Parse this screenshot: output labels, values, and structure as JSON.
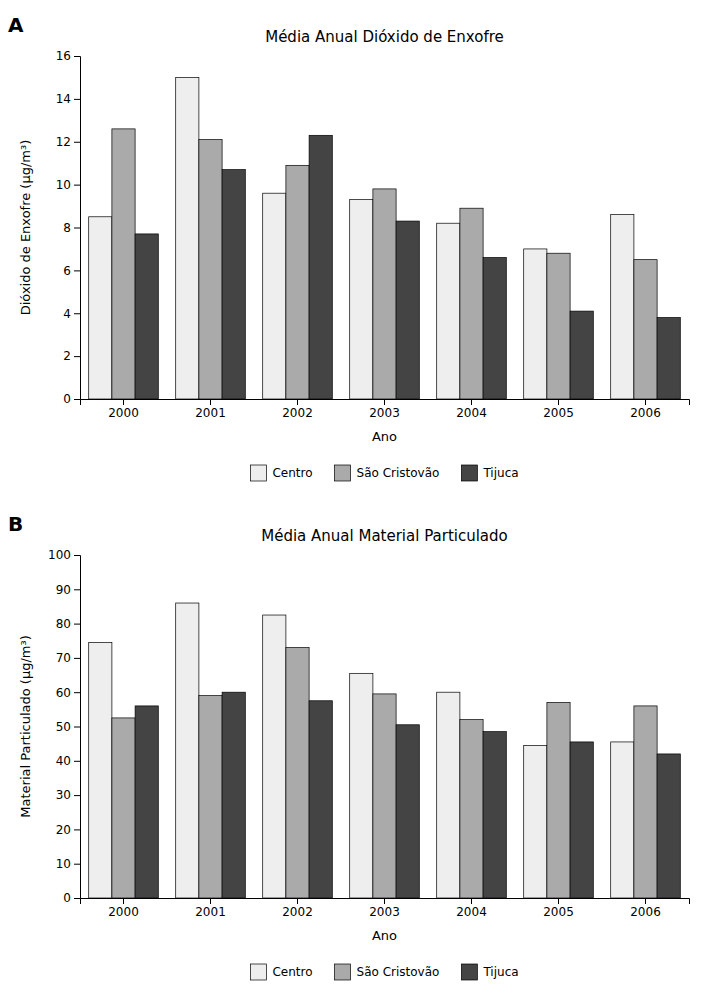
{
  "chart_data": [
    {
      "type": "bar",
      "title": "Média Anual Dióxido de Enxofre",
      "xlabel": "Ano",
      "ylabel": "Dióxido de Enxofre (μg/m³)",
      "annotations": [
        "A"
      ],
      "categories": [
        2000,
        2001,
        2002,
        2003,
        2004,
        2005,
        2006
      ],
      "series": [
        {
          "name": "Centro",
          "color": "#eeeeee",
          "values": [
            8.5,
            15.0,
            9.6,
            9.3,
            8.2,
            7.0,
            8.6
          ]
        },
        {
          "name": "São Cristovão",
          "color": "#aaaaaa",
          "values": [
            12.6,
            12.1,
            10.9,
            9.8,
            8.9,
            6.8,
            6.5
          ]
        },
        {
          "name": "Tijuca",
          "color": "#444444",
          "values": [
            7.7,
            10.7,
            12.3,
            8.3,
            6.6,
            4.1,
            3.8
          ]
        }
      ],
      "ylim": [
        0,
        16
      ],
      "yticks": [
        0,
        2,
        4,
        6,
        8,
        10,
        12,
        14,
        16
      ],
      "grid": false,
      "legend": "bottom"
    },
    {
      "type": "bar",
      "title": "Média Anual Material Particulado",
      "xlabel": "Ano",
      "ylabel": "Material Particulado (μg/m³)",
      "annotations": [
        "B"
      ],
      "categories": [
        2000,
        2001,
        2002,
        2003,
        2004,
        2005,
        2006
      ],
      "series": [
        {
          "name": "Centro",
          "color": "#eeeeee",
          "values": [
            74.5,
            86.0,
            82.5,
            65.5,
            60.0,
            44.5,
            45.5
          ]
        },
        {
          "name": "São Cristovão",
          "color": "#aaaaaa",
          "values": [
            52.5,
            59.0,
            73.0,
            59.5,
            52.0,
            57.0,
            56.0
          ]
        },
        {
          "name": "Tijuca",
          "color": "#444444",
          "values": [
            56.0,
            60.0,
            57.5,
            50.5,
            48.5,
            45.5,
            42.0
          ]
        }
      ],
      "ylim": [
        0,
        100
      ],
      "yticks": [
        0,
        10,
        20,
        30,
        40,
        50,
        60,
        70,
        80,
        90,
        100
      ],
      "grid": false,
      "legend": "bottom"
    }
  ]
}
